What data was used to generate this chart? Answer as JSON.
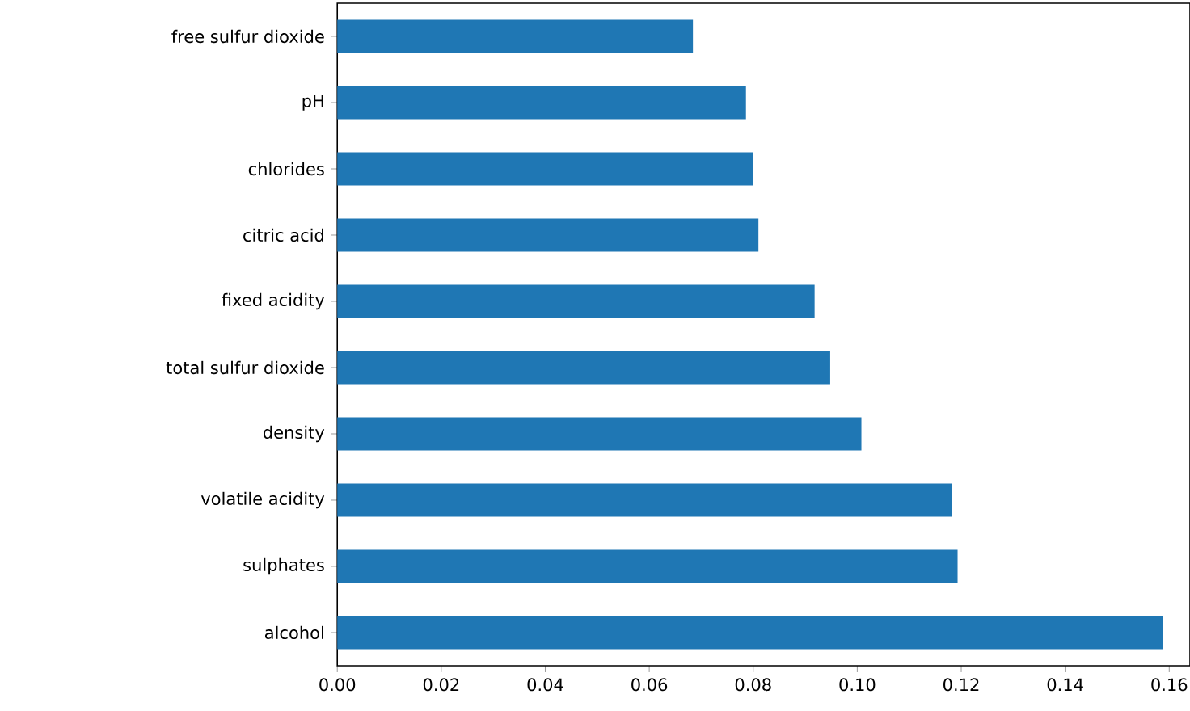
{
  "chart_data": {
    "type": "bar",
    "orientation": "horizontal",
    "categories": [
      "free sulfur dioxide",
      "pH",
      "chlorides",
      "citric acid",
      "fixed acidity",
      "total sulfur dioxide",
      "density",
      "volatile acidity",
      "sulphates",
      "alcohol"
    ],
    "values": [
      0.0684,
      0.0786,
      0.0799,
      0.081,
      0.0918,
      0.0948,
      0.1008,
      0.1182,
      0.1193,
      0.1588
    ],
    "color": "#1f77b4",
    "xlim": [
      0,
      0.164
    ],
    "xticks": [
      {
        "value": 0,
        "label": "0.00"
      },
      {
        "value": 0.02,
        "label": "0.02"
      },
      {
        "value": 0.04,
        "label": "0.04"
      },
      {
        "value": 0.06,
        "label": "0.06"
      },
      {
        "value": 0.08,
        "label": "0.08"
      },
      {
        "value": 0.1,
        "label": "0.10"
      },
      {
        "value": 0.12,
        "label": "0.12"
      },
      {
        "value": 0.14,
        "label": "0.14"
      },
      {
        "value": 0.16,
        "label": "0.16"
      }
    ]
  }
}
